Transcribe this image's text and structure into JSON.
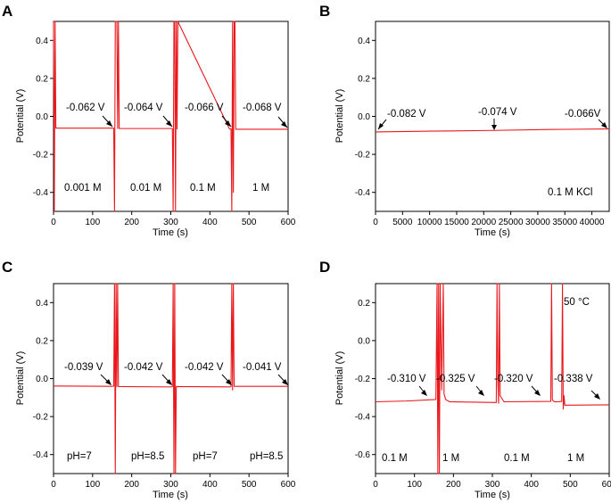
{
  "chart_data": [
    {
      "panel": "A",
      "type": "line",
      "xlabel": "Time (s)",
      "ylabel": "Potential (V)",
      "xlim": [
        0,
        600
      ],
      "ylim": [
        -0.5,
        0.5
      ],
      "xticks": [
        "0",
        "100",
        "200",
        "300",
        "400",
        "500",
        "600"
      ],
      "yticks": [
        "0.4",
        "0.2",
        "0.0",
        "-0.2",
        "-0.4"
      ],
      "line_color": "#e8181c",
      "series": [
        {
          "name": "potential",
          "x": [
            0,
            2,
            4,
            6,
            150,
            154,
            156,
            158,
            160,
            162,
            164,
            166,
            168,
            300,
            304,
            306,
            308,
            310,
            312,
            314,
            316,
            318,
            450,
            454,
            456,
            458,
            460,
            462,
            464,
            466,
            600
          ],
          "y": [
            0.5,
            -0.5,
            0.5,
            -0.062,
            -0.062,
            -0.062,
            -0.5,
            0.5,
            0.5,
            0.5,
            -0.064,
            0.5,
            -0.064,
            -0.064,
            -0.064,
            -0.5,
            0.5,
            0.5,
            -0.5,
            0.5,
            -0.066,
            0.5,
            -0.066,
            -0.066,
            -0.5,
            0.5,
            -0.4,
            0.5,
            0.5,
            -0.068,
            -0.068
          ]
        }
      ],
      "annotations": [
        {
          "text": "-0.062 V",
          "x": 155,
          "y": -0.062
        },
        {
          "text": "-0.064 V",
          "x": 305,
          "y": -0.064
        },
        {
          "text": "-0.066 V",
          "x": 454,
          "y": -0.066
        },
        {
          "text": "-0.068 V",
          "x": 598,
          "y": -0.068
        }
      ],
      "segment_labels": [
        "0.001 M",
        "0.01 M",
        "0.1 M",
        "1 M"
      ]
    },
    {
      "panel": "B",
      "type": "line",
      "xlabel": "Time (s)",
      "ylabel": "Potential (V)",
      "xlim": [
        0,
        43200
      ],
      "ylim": [
        -0.5,
        0.5
      ],
      "xticks": [
        "0",
        "5000",
        "10000",
        "15000",
        "20000",
        "25000",
        "30000",
        "35000",
        "40000"
      ],
      "yticks": [
        "0.4",
        "0.2",
        "0.0",
        "-0.2",
        "-0.4"
      ],
      "line_color": "#e8181c",
      "series": [
        {
          "name": "potential",
          "x": [
            0,
            10000,
            21600,
            32000,
            43200
          ],
          "y": [
            -0.082,
            -0.078,
            -0.074,
            -0.069,
            -0.066
          ]
        }
      ],
      "annotations": [
        {
          "text": "-0.082 V",
          "x": 200,
          "y": -0.082
        },
        {
          "text": "-0.074 V",
          "x": 21600,
          "y": -0.074
        },
        {
          "text": "-0.066V",
          "x": 43000,
          "y": -0.066
        }
      ],
      "segment_labels": [
        "0.1 M KCl"
      ]
    },
    {
      "panel": "C",
      "type": "line",
      "xlabel": "Time (s)",
      "ylabel": "Potential (V)",
      "xlim": [
        0,
        600
      ],
      "ylim": [
        -0.5,
        0.5
      ],
      "xticks": [
        "0",
        "100",
        "200",
        "300",
        "400",
        "500",
        "600"
      ],
      "yticks": [
        "0.4",
        "0.2",
        "0.0",
        "-0.2",
        "-0.4"
      ],
      "line_color": "#e8181c",
      "series": [
        {
          "name": "potential",
          "x": [
            0,
            150,
            154,
            156,
            158,
            160,
            162,
            164,
            166,
            300,
            304,
            306,
            308,
            310,
            312,
            314,
            450,
            454,
            456,
            458,
            460,
            462,
            600
          ],
          "y": [
            -0.039,
            -0.041,
            -0.039,
            0.5,
            -0.5,
            0.5,
            -0.042,
            0.5,
            -0.042,
            -0.044,
            -0.042,
            0.5,
            -0.5,
            0.5,
            -0.5,
            -0.042,
            -0.044,
            -0.042,
            0.5,
            -0.06,
            0.5,
            -0.041,
            -0.041
          ]
        }
      ],
      "annotations": [
        {
          "text": "-0.039 V",
          "x": 155,
          "y": -0.039
        },
        {
          "text": "-0.042 V",
          "x": 305,
          "y": -0.042
        },
        {
          "text": "-0.042 V",
          "x": 454,
          "y": -0.042
        },
        {
          "text": "-0.041 V",
          "x": 598,
          "y": -0.041
        }
      ],
      "segment_labels": [
        "pH=7",
        "pH=8.5",
        "pH=7",
        "pH=8.5"
      ]
    },
    {
      "panel": "D",
      "type": "line",
      "xlabel": "Time (s)",
      "ylabel": "Potential (V)",
      "xlim": [
        0,
        600
      ],
      "ylim": [
        -0.7,
        0.3
      ],
      "xticks": [
        "0",
        "100",
        "200",
        "300",
        "400",
        "500",
        "600"
      ],
      "yticks": [
        "0.2",
        "0.0",
        "-0.2",
        "-0.4",
        "-0.6"
      ],
      "line_color": "#e8181c",
      "series": [
        {
          "name": "potential",
          "x": [
            0,
            80,
            155,
            158,
            160,
            162,
            164,
            166,
            170,
            174,
            176,
            180,
            190,
            310,
            312,
            314,
            316,
            318,
            320,
            330,
            450,
            452,
            454,
            456,
            460,
            470,
            478,
            480,
            482,
            484,
            486,
            600
          ],
          "y": [
            -0.322,
            -0.318,
            -0.31,
            0.3,
            -0.7,
            0.3,
            -0.7,
            0.3,
            -0.26,
            0.3,
            -0.28,
            -0.31,
            -0.322,
            -0.326,
            0.3,
            -0.2,
            -0.33,
            0.3,
            -0.29,
            -0.322,
            -0.32,
            0.3,
            -0.31,
            -0.318,
            -0.322,
            -0.322,
            -0.32,
            0.3,
            -0.36,
            -0.29,
            -0.34,
            -0.338
          ]
        }
      ],
      "annotations": [
        {
          "text": "-0.310 V",
          "x": 155,
          "y": -0.31
        },
        {
          "text": "-0.325 V",
          "x": 305,
          "y": -0.325
        },
        {
          "text": "-0.320 V",
          "x": 452,
          "y": -0.32
        },
        {
          "text": "-0.338 V",
          "x": 598,
          "y": -0.338
        }
      ],
      "segment_labels": [
        "0.1 M",
        "1 M",
        "0.1 M",
        "1 M"
      ],
      "extra_label": "50 °C"
    }
  ],
  "panel_labels": [
    "A",
    "B",
    "C",
    "D"
  ]
}
